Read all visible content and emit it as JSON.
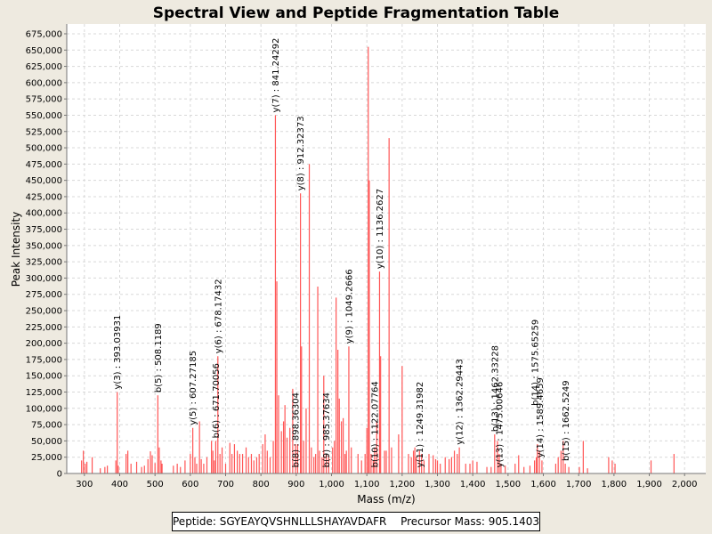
{
  "footer": {
    "peptide_label": "Peptide:",
    "peptide": "SGYEAYQVSHNLLLSHAYAVDAFR",
    "precursor_label": "Precursor Mass:",
    "precursor_mass": "905.1403"
  },
  "colors": {
    "peak": "#ff5555",
    "background": "#eeeae0",
    "plot": "#ffffff",
    "grid": "#d8d8d8"
  },
  "chart_data": {
    "type": "bar",
    "title": "Spectral View and Peptide Fragmentation Table",
    "xlabel": "Mass (m/z)",
    "ylabel": "Peak Intensity",
    "xlim": [
      250,
      2060
    ],
    "ylim": [
      0,
      690000
    ],
    "grid": true,
    "legend": "none",
    "x_ticks": [
      300,
      400,
      500,
      600,
      700,
      800,
      900,
      1000,
      1100,
      1200,
      1300,
      1400,
      1500,
      1600,
      1700,
      1800,
      1900,
      2000
    ],
    "x_tick_labels": [
      "300",
      "400",
      "500",
      "600",
      "700",
      "800",
      "900",
      "1,000",
      "1,100",
      "1,200",
      "1,300",
      "1,400",
      "1,500",
      "1,600",
      "1,700",
      "1,800",
      "1,900",
      "2,000"
    ],
    "y_ticks": [
      0,
      25000,
      50000,
      75000,
      100000,
      125000,
      150000,
      175000,
      200000,
      225000,
      250000,
      275000,
      300000,
      325000,
      350000,
      375000,
      400000,
      425000,
      450000,
      475000,
      500000,
      525000,
      550000,
      575000,
      600000,
      625000,
      650000,
      675000
    ],
    "y_tick_labels": [
      "0",
      "25,000",
      "50,000",
      "75,000",
      "100,000",
      "125,000",
      "150,000",
      "175,000",
      "200,000",
      "225,000",
      "250,000",
      "275,000",
      "300,000",
      "325,000",
      "350,000",
      "375,000",
      "400,000",
      "425,000",
      "450,000",
      "475,000",
      "500,000",
      "525,000",
      "550,000",
      "575,000",
      "600,000",
      "625,000",
      "650,000",
      "675,000"
    ],
    "peaks": [
      [
        292,
        20000
      ],
      [
        297,
        35000
      ],
      [
        302,
        15000
      ],
      [
        307,
        18000
      ],
      [
        322,
        25000
      ],
      [
        345,
        8000
      ],
      [
        358,
        10000
      ],
      [
        365,
        12000
      ],
      [
        389,
        20000
      ],
      [
        393,
        125000
      ],
      [
        396,
        12000
      ],
      [
        418,
        30000
      ],
      [
        423,
        35000
      ],
      [
        432,
        15000
      ],
      [
        448,
        18000
      ],
      [
        462,
        10000
      ],
      [
        470,
        12000
      ],
      [
        480,
        22000
      ],
      [
        487,
        34000
      ],
      [
        492,
        28000
      ],
      [
        500,
        16000
      ],
      [
        508,
        120000
      ],
      [
        512,
        40000
      ],
      [
        517,
        20000
      ],
      [
        520,
        15000
      ],
      [
        552,
        12000
      ],
      [
        563,
        15000
      ],
      [
        572,
        10000
      ],
      [
        585,
        20000
      ],
      [
        600,
        30000
      ],
      [
        607,
        70000
      ],
      [
        613,
        25000
      ],
      [
        618,
        15000
      ],
      [
        626,
        80000
      ],
      [
        631,
        22000
      ],
      [
        638,
        15000
      ],
      [
        647,
        25000
      ],
      [
        660,
        50000
      ],
      [
        664,
        35000
      ],
      [
        668,
        20000
      ],
      [
        672,
        50000
      ],
      [
        678,
        180000
      ],
      [
        684,
        30000
      ],
      [
        690,
        40000
      ],
      [
        700,
        15000
      ],
      [
        712,
        47000
      ],
      [
        718,
        30000
      ],
      [
        725,
        45000
      ],
      [
        733,
        35000
      ],
      [
        740,
        30000
      ],
      [
        748,
        30000
      ],
      [
        758,
        40000
      ],
      [
        765,
        25000
      ],
      [
        773,
        30000
      ],
      [
        780,
        20000
      ],
      [
        788,
        25000
      ],
      [
        795,
        30000
      ],
      [
        805,
        45000
      ],
      [
        812,
        60000
      ],
      [
        818,
        35000
      ],
      [
        826,
        25000
      ],
      [
        835,
        50000
      ],
      [
        841,
        550000
      ],
      [
        845,
        295000
      ],
      [
        850,
        120000
      ],
      [
        858,
        65000
      ],
      [
        864,
        80000
      ],
      [
        868,
        105000
      ],
      [
        874,
        55000
      ],
      [
        882,
        70000
      ],
      [
        890,
        130000
      ],
      [
        898,
        45000
      ],
      [
        904,
        45000
      ],
      [
        912,
        430000
      ],
      [
        915,
        195000
      ],
      [
        921,
        50000
      ],
      [
        928,
        100000
      ],
      [
        937,
        475000
      ],
      [
        943,
        40000
      ],
      [
        950,
        25000
      ],
      [
        955,
        30000
      ],
      [
        961,
        287000
      ],
      [
        966,
        35000
      ],
      [
        973,
        25000
      ],
      [
        978,
        150000
      ],
      [
        985,
        30000
      ],
      [
        992,
        28000
      ],
      [
        1003,
        40000
      ],
      [
        1008,
        50000
      ],
      [
        1013,
        270000
      ],
      [
        1018,
        190000
      ],
      [
        1022,
        115000
      ],
      [
        1028,
        80000
      ],
      [
        1033,
        85000
      ],
      [
        1038,
        30000
      ],
      [
        1042,
        35000
      ],
      [
        1049,
        195000
      ],
      [
        1056,
        40000
      ],
      [
        1075,
        30000
      ],
      [
        1085,
        20000
      ],
      [
        1095,
        30000
      ],
      [
        1100,
        70000
      ],
      [
        1104,
        655000
      ],
      [
        1107,
        450000
      ],
      [
        1112,
        30000
      ],
      [
        1118,
        20000
      ],
      [
        1122,
        40000
      ],
      [
        1128,
        80000
      ],
      [
        1136,
        310000
      ],
      [
        1139,
        180000
      ],
      [
        1150,
        35000
      ],
      [
        1155,
        35000
      ],
      [
        1163,
        515000
      ],
      [
        1170,
        40000
      ],
      [
        1190,
        60000
      ],
      [
        1200,
        165000
      ],
      [
        1218,
        30000
      ],
      [
        1226,
        25000
      ],
      [
        1232,
        35000
      ],
      [
        1236,
        40000
      ],
      [
        1240,
        25000
      ],
      [
        1249,
        35000
      ],
      [
        1255,
        30000
      ],
      [
        1262,
        20000
      ],
      [
        1276,
        30000
      ],
      [
        1288,
        28000
      ],
      [
        1295,
        22000
      ],
      [
        1300,
        20000
      ],
      [
        1308,
        15000
      ],
      [
        1322,
        25000
      ],
      [
        1333,
        22000
      ],
      [
        1340,
        25000
      ],
      [
        1348,
        35000
      ],
      [
        1356,
        30000
      ],
      [
        1362,
        40000
      ],
      [
        1380,
        15000
      ],
      [
        1392,
        15000
      ],
      [
        1400,
        20000
      ],
      [
        1412,
        18000
      ],
      [
        1440,
        10000
      ],
      [
        1452,
        10000
      ],
      [
        1462,
        60000
      ],
      [
        1470,
        50000
      ],
      [
        1475,
        30000
      ],
      [
        1480,
        15000
      ],
      [
        1492,
        12000
      ],
      [
        1520,
        15000
      ],
      [
        1530,
        28000
      ],
      [
        1545,
        10000
      ],
      [
        1562,
        12000
      ],
      [
        1575,
        20000
      ],
      [
        1580,
        25000
      ],
      [
        1583,
        45000
      ],
      [
        1589,
        35000
      ],
      [
        1596,
        20000
      ],
      [
        1635,
        15000
      ],
      [
        1642,
        25000
      ],
      [
        1650,
        35000
      ],
      [
        1656,
        50000
      ],
      [
        1662,
        15000
      ],
      [
        1672,
        10000
      ],
      [
        1702,
        10000
      ],
      [
        1713,
        50000
      ],
      [
        1725,
        8000
      ],
      [
        1785,
        25000
      ],
      [
        1795,
        20000
      ],
      [
        1803,
        15000
      ],
      [
        1905,
        20000
      ],
      [
        1970,
        30000
      ]
    ],
    "annotations": [
      {
        "x": 393.03931,
        "y": 125000,
        "label": "y(3) : 393.03931"
      },
      {
        "x": 508.1189,
        "y": 120000,
        "label": "b(5) : 508.1189"
      },
      {
        "x": 607.27185,
        "y": 70000,
        "label": "y(5) : 607.27185"
      },
      {
        "x": 671.70056,
        "y": 50000,
        "label": "b(6) : 671.70056"
      },
      {
        "x": 678.17432,
        "y": 180000,
        "label": "y(6) : 678.17432"
      },
      {
        "x": 841.24292,
        "y": 550000,
        "label": "y(7) : 841.24292"
      },
      {
        "x": 898.36304,
        "y": 5000,
        "label": "b(8) : 898.36304"
      },
      {
        "x": 912.32373,
        "y": 430000,
        "label": "y(8) : 912.32373"
      },
      {
        "x": 985.37634,
        "y": 5000,
        "label": "b(9) : 985.37634"
      },
      {
        "x": 1049.2666,
        "y": 195000,
        "label": "y(9) : 1049.2666"
      },
      {
        "x": 1122.07764,
        "y": 5000,
        "label": "b(10) : 1122.07764"
      },
      {
        "x": 1136.2627,
        "y": 310000,
        "label": "y(10) : 1136.2627"
      },
      {
        "x": 1249.31982,
        "y": 5000,
        "label": "y(11) : 1249.31982"
      },
      {
        "x": 1362.29443,
        "y": 40000,
        "label": "y(12) : 1362.29443"
      },
      {
        "x": 1462.33228,
        "y": 60000,
        "label": "b(13) : 1462.33228"
      },
      {
        "x": 1475.00646,
        "y": 5000,
        "label": "y(13) : 1475.00646"
      },
      {
        "x": 1575.65259,
        "y": 100000,
        "label": "b(14) : 1575.65259"
      },
      {
        "x": 1589.4659,
        "y": 20000,
        "label": "y(14) : 1589.4659"
      },
      {
        "x": 1662.5249,
        "y": 15000,
        "label": "b(15) : 1662.5249"
      }
    ]
  }
}
